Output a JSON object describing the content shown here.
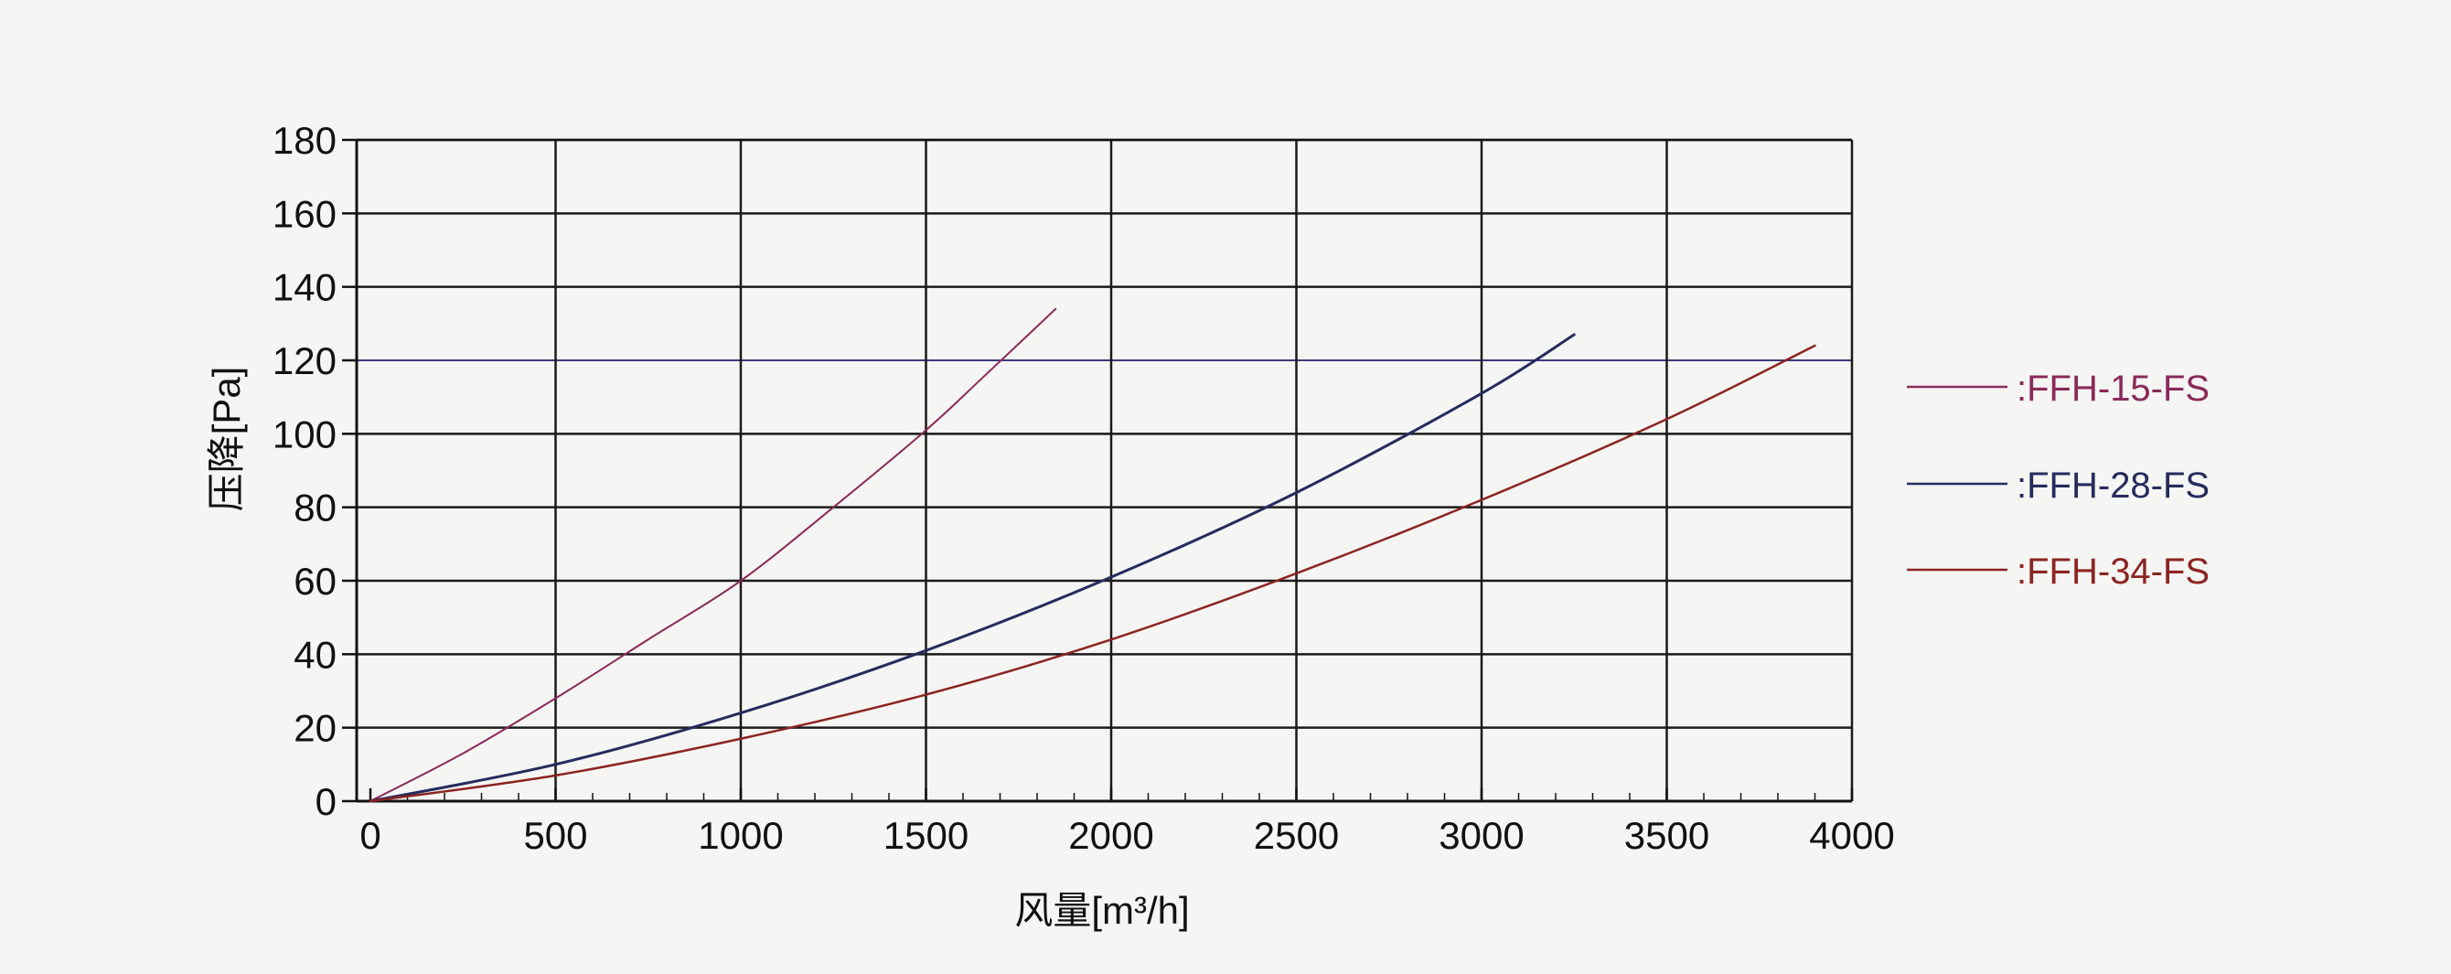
{
  "chart_data": {
    "type": "line",
    "xlabel": "风量[m³/h]",
    "ylabel": "压降[Pa]",
    "xlim": [
      0,
      4000
    ],
    "ylim": [
      0,
      180
    ],
    "xticks": [
      0,
      500,
      1000,
      1500,
      2000,
      2500,
      3000,
      3500,
      4000
    ],
    "yticks": [
      0,
      20,
      40,
      60,
      80,
      100,
      120,
      140,
      160,
      180
    ],
    "grid": true,
    "legend_position": "right",
    "series": [
      {
        "name": ":FFH-15-FS",
        "color": "#8a2a5a",
        "x": [
          0,
          250,
          500,
          750,
          1000,
          1250,
          1500,
          1650,
          1850
        ],
        "y": [
          0,
          13,
          28,
          44,
          60,
          80,
          101,
          115,
          134
        ]
      },
      {
        "name": ":FFH-28-FS",
        "color": "#262b5e",
        "x": [
          0,
          500,
          1000,
          1500,
          2000,
          2500,
          3000,
          3250
        ],
        "y": [
          0,
          10,
          24,
          41,
          61,
          84,
          111,
          127
        ]
      },
      {
        "name": ":FFH-34-FS",
        "color": "#8c2420",
        "x": [
          0,
          500,
          1000,
          1500,
          2000,
          2500,
          3000,
          3500,
          3900
        ],
        "y": [
          0,
          7,
          17,
          29,
          44,
          62,
          82,
          104,
          124
        ]
      }
    ]
  }
}
